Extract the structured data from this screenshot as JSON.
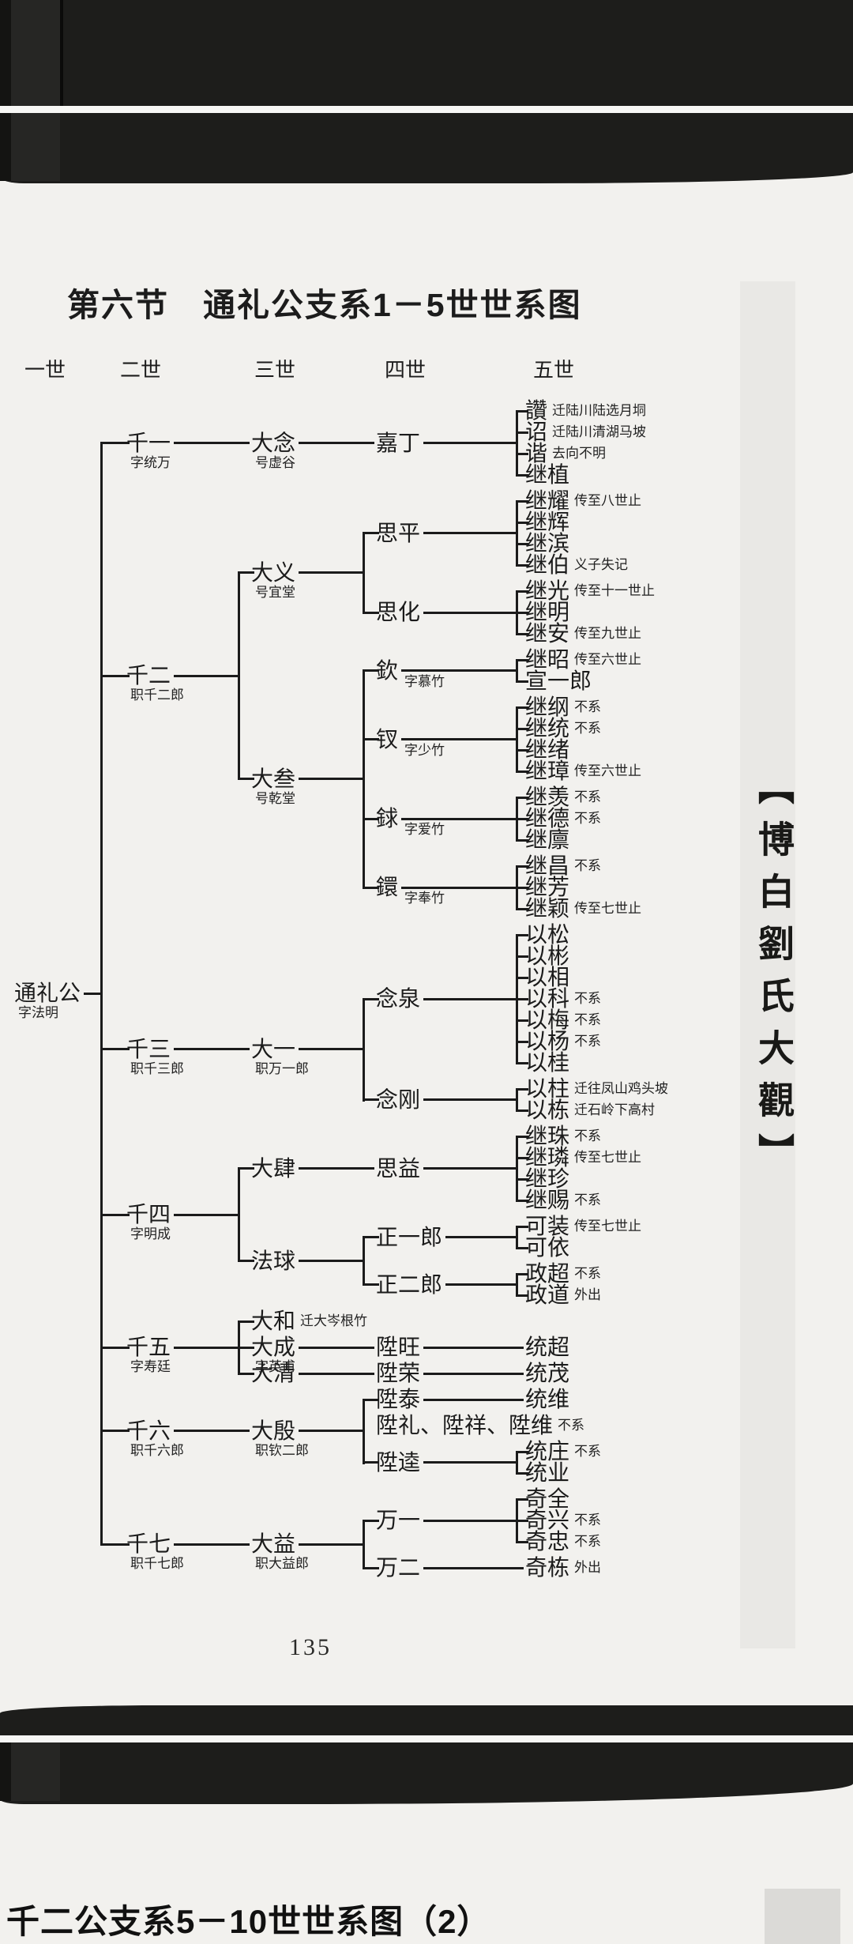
{
  "page": {
    "section_title": "第六节　通礼公支系1－5世世系图",
    "generation_headers": [
      "一世",
      "二世",
      "三世",
      "四世",
      "五世"
    ],
    "side_banner": "【博白劉氏大觀】",
    "page_number": "135",
    "next_page_caption": "千二公支系5－10世世系图（2）"
  },
  "tree": {
    "name": "通礼公",
    "note": "字法明",
    "children": [
      {
        "name": "千一",
        "note": "字统万",
        "children": [
          {
            "name": "大念",
            "note": "号虚谷",
            "children": [
              {
                "name": "嘉丁",
                "children": [
                  {
                    "name": "讚",
                    "note": "迁陆川陆选月垌"
                  },
                  {
                    "name": "诏",
                    "note": "迁陆川清湖马坡"
                  },
                  {
                    "name": "谐",
                    "note": "去向不明"
                  },
                  {
                    "name": "继植"
                  }
                ]
              }
            ]
          }
        ]
      },
      {
        "name": "千二",
        "note": "职千二郎",
        "children": [
          {
            "name": "大义",
            "note": "号宜堂",
            "children": [
              {
                "name": "思平",
                "children": [
                  {
                    "name": "继耀",
                    "note": "传至八世止"
                  },
                  {
                    "name": "继辉"
                  },
                  {
                    "name": "继滨"
                  },
                  {
                    "name": "继伯",
                    "note": "义子失记"
                  }
                ]
              },
              {
                "name": "思化",
                "children": [
                  {
                    "name": "继光",
                    "note": "传至十一世止"
                  },
                  {
                    "name": "继明"
                  },
                  {
                    "name": "继安",
                    "note": "传至九世止"
                  }
                ]
              }
            ]
          },
          {
            "name": "大叁",
            "note": "号乾堂",
            "children": [
              {
                "name": "欽",
                "note": "字慕竹",
                "children": [
                  {
                    "name": "继昭",
                    "note": "传至六世止"
                  },
                  {
                    "name": "宣一郎"
                  }
                ]
              },
              {
                "name": "钗",
                "note": "字少竹",
                "children": [
                  {
                    "name": "继纲",
                    "note": "不系"
                  },
                  {
                    "name": "继统",
                    "note": "不系"
                  },
                  {
                    "name": "继绪"
                  },
                  {
                    "name": "继璋",
                    "note": "传至六世止"
                  }
                ]
              },
              {
                "name": "銶",
                "note": "字爱竹",
                "children": [
                  {
                    "name": "继羡",
                    "note": "不系"
                  },
                  {
                    "name": "继德",
                    "note": "不系"
                  },
                  {
                    "name": "继廪"
                  }
                ]
              },
              {
                "name": "鐶",
                "note": "字奉竹",
                "children": [
                  {
                    "name": "继昌",
                    "note": "不系"
                  },
                  {
                    "name": "继芳"
                  },
                  {
                    "name": "继颖",
                    "note": "传至七世止"
                  }
                ]
              }
            ]
          }
        ]
      },
      {
        "name": "千三",
        "note": "职千三郎",
        "children": [
          {
            "name": "大一",
            "note": "职万一郎",
            "children": [
              {
                "name": "念泉",
                "children": [
                  {
                    "name": "以松"
                  },
                  {
                    "name": "以彬"
                  },
                  {
                    "name": "以相"
                  },
                  {
                    "name": "以科",
                    "note": "不系"
                  },
                  {
                    "name": "以梅",
                    "note": "不系"
                  },
                  {
                    "name": "以杨",
                    "note": "不系"
                  },
                  {
                    "name": "以桂"
                  }
                ]
              },
              {
                "name": "念刚",
                "children": [
                  {
                    "name": "以柱",
                    "note": "迁往凤山鸡头坡"
                  },
                  {
                    "name": "以栋",
                    "note": "迁石岭下高村"
                  }
                ]
              }
            ]
          }
        ]
      },
      {
        "name": "千四",
        "note": "字明成",
        "children": [
          {
            "name": "大肆",
            "children": [
              {
                "name": "思益",
                "children": [
                  {
                    "name": "继珠",
                    "note": "不系"
                  },
                  {
                    "name": "继璘",
                    "note": "传至七世止"
                  },
                  {
                    "name": "继珍"
                  },
                  {
                    "name": "继赐",
                    "note": "不系"
                  }
                ]
              }
            ]
          },
          {
            "name": "法球",
            "children": [
              {
                "name": "正一郎",
                "children": [
                  {
                    "name": "可装",
                    "note": "传至七世止"
                  },
                  {
                    "name": "可依"
                  }
                ]
              },
              {
                "name": "正二郎",
                "children": [
                  {
                    "name": "政超",
                    "note": "不系"
                  },
                  {
                    "name": "政道",
                    "note": "外出"
                  }
                ]
              }
            ]
          }
        ]
      },
      {
        "name": "千五",
        "note": "字寿廷",
        "children": [
          {
            "name": "大和",
            "note": "迁大岑根竹"
          },
          {
            "name": "大成",
            "note": "字英甫",
            "children": [
              {
                "name": "陞旺",
                "children": [
                  {
                    "name": "统超"
                  }
                ]
              }
            ]
          },
          {
            "name": "大清",
            "children": [
              {
                "name": "陞荣",
                "children": [
                  {
                    "name": "统茂"
                  }
                ]
              }
            ]
          }
        ]
      },
      {
        "name": "千六",
        "note": "职千六郎",
        "children": [
          {
            "name": "大殷",
            "note": "职钦二郎",
            "children": [
              {
                "name": "陞泰",
                "children": [
                  {
                    "name": "统维"
                  }
                ]
              },
              {
                "name": "陞礼、陞祥、陞维",
                "note": "不系",
                "bare": true
              },
              {
                "name": "陞逵",
                "children": [
                  {
                    "name": "统庄",
                    "note": "不系"
                  },
                  {
                    "name": "统业"
                  }
                ]
              }
            ]
          }
        ]
      },
      {
        "name": "千七",
        "note": "职千七郎",
        "children": [
          {
            "name": "大益",
            "note": "职大益郎",
            "children": [
              {
                "name": "万一",
                "children": [
                  {
                    "name": "奇全"
                  },
                  {
                    "name": "奇兴",
                    "note": "不系"
                  },
                  {
                    "name": "奇忠",
                    "note": "不系"
                  }
                ]
              },
              {
                "name": "万二",
                "children": [
                  {
                    "name": "奇栋",
                    "note": "外出"
                  }
                ]
              }
            ]
          }
        ]
      }
    ]
  }
}
